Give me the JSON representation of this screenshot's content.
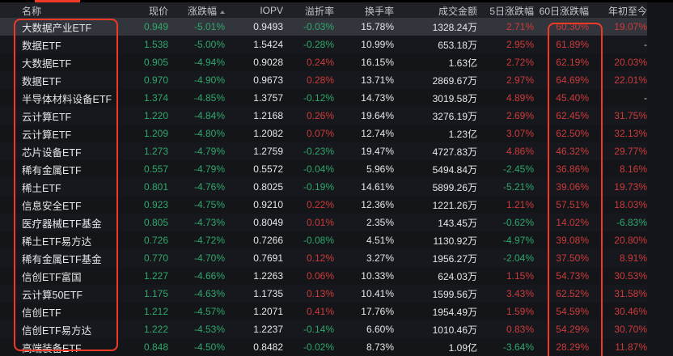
{
  "annotations": {
    "name_column_box_color": "#f13a26",
    "d60_column_box_color": "#f13a26",
    "top_mark_color": "#f13a26"
  },
  "colors": {
    "up_red": "#cd3b3b",
    "down_green": "#2fa86b",
    "neutral_white": "#e5e7ea",
    "header_bg": "#1f2127",
    "row_bg": "#141519",
    "highlight_row_bg": "#32353c"
  },
  "table": {
    "columns": [
      {
        "key": "name",
        "label": "名称",
        "align": "left",
        "color_rule": "white"
      },
      {
        "key": "price",
        "label": "现价",
        "align": "right",
        "color_rule": "follow-change"
      },
      {
        "key": "change",
        "label": "涨跌幅",
        "align": "right",
        "color_rule": "sign",
        "sorted": "asc"
      },
      {
        "key": "iopv",
        "label": "IOPV",
        "align": "right",
        "color_rule": "white"
      },
      {
        "key": "premium",
        "label": "溢折率",
        "align": "right",
        "color_rule": "sign"
      },
      {
        "key": "turnover",
        "label": "换手率",
        "align": "right",
        "color_rule": "white"
      },
      {
        "key": "amount",
        "label": "成交金额",
        "align": "right",
        "color_rule": "white"
      },
      {
        "key": "d5",
        "label": "5日涨跌幅",
        "align": "right",
        "color_rule": "sign"
      },
      {
        "key": "d60",
        "label": "60日涨跌幅",
        "align": "right",
        "color_rule": "sign"
      },
      {
        "key": "ytd",
        "label": "年初至今",
        "align": "right",
        "color_rule": "sign"
      }
    ],
    "highlighted_row_index": 0,
    "rows": [
      {
        "name": "大数据产业ETF",
        "price": "0.949",
        "change": "-5.01%",
        "iopv": "0.9493",
        "premium": "-0.03%",
        "turnover": "15.78%",
        "amount": "1328.24万",
        "d5": "2.71%",
        "d60": "60.30%",
        "ytd": "19.07%"
      },
      {
        "name": "数据ETF",
        "price": "1.538",
        "change": "-5.00%",
        "iopv": "1.5424",
        "premium": "-0.28%",
        "turnover": "10.99%",
        "amount": "653.18万",
        "d5": "2.95%",
        "d60": "61.89%",
        "ytd": "-"
      },
      {
        "name": "大数据ETF",
        "price": "0.905",
        "change": "-4.94%",
        "iopv": "0.9028",
        "premium": "0.24%",
        "turnover": "16.15%",
        "amount": "1.63亿",
        "d5": "2.72%",
        "d60": "62.19%",
        "ytd": "20.03%"
      },
      {
        "name": "数据ETF",
        "price": "0.970",
        "change": "-4.90%",
        "iopv": "0.9673",
        "premium": "0.28%",
        "turnover": "13.71%",
        "amount": "2869.67万",
        "d5": "2.97%",
        "d60": "64.69%",
        "ytd": "22.01%"
      },
      {
        "name": "半导体材料设备ETF",
        "price": "1.374",
        "change": "-4.85%",
        "iopv": "1.3757",
        "premium": "-0.12%",
        "turnover": "14.73%",
        "amount": "3019.58万",
        "d5": "4.89%",
        "d60": "45.40%",
        "ytd": "-"
      },
      {
        "name": "云计算ETF",
        "price": "1.220",
        "change": "-4.84%",
        "iopv": "1.2168",
        "premium": "0.26%",
        "turnover": "19.64%",
        "amount": "3276.19万",
        "d5": "2.69%",
        "d60": "62.45%",
        "ytd": "31.75%"
      },
      {
        "name": "云计算ETF",
        "price": "1.209",
        "change": "-4.80%",
        "iopv": "1.2082",
        "premium": "0.07%",
        "turnover": "12.74%",
        "amount": "1.23亿",
        "d5": "3.07%",
        "d60": "62.50%",
        "ytd": "32.13%"
      },
      {
        "name": "芯片设备ETF",
        "price": "1.273",
        "change": "-4.79%",
        "iopv": "1.2759",
        "premium": "-0.23%",
        "turnover": "19.47%",
        "amount": "4727.83万",
        "d5": "4.86%",
        "d60": "46.32%",
        "ytd": "29.77%"
      },
      {
        "name": "稀有金属ETF",
        "price": "0.557",
        "change": "-4.79%",
        "iopv": "0.5572",
        "premium": "-0.04%",
        "turnover": "5.96%",
        "amount": "5494.84万",
        "d5": "-2.45%",
        "d60": "36.86%",
        "ytd": "8.16%"
      },
      {
        "name": "稀土ETF",
        "price": "0.801",
        "change": "-4.76%",
        "iopv": "0.8025",
        "premium": "-0.19%",
        "turnover": "14.61%",
        "amount": "5899.26万",
        "d5": "-5.21%",
        "d60": "39.06%",
        "ytd": "19.73%"
      },
      {
        "name": "信息安全ETF",
        "price": "0.923",
        "change": "-4.75%",
        "iopv": "0.9210",
        "premium": "0.22%",
        "turnover": "12.36%",
        "amount": "1221.26万",
        "d5": "1.21%",
        "d60": "57.51%",
        "ytd": "18.03%"
      },
      {
        "name": "医疗器械ETF基金",
        "price": "0.805",
        "change": "-4.73%",
        "iopv": "0.8049",
        "premium": "0.01%",
        "turnover": "2.35%",
        "amount": "143.45万",
        "d5": "-0.62%",
        "d60": "14.02%",
        "ytd": "-6.83%"
      },
      {
        "name": "稀土ETF易方达",
        "price": "0.726",
        "change": "-4.72%",
        "iopv": "0.7266",
        "premium": "-0.08%",
        "turnover": "4.51%",
        "amount": "1130.92万",
        "d5": "-4.97%",
        "d60": "39.08%",
        "ytd": "20.80%"
      },
      {
        "name": "稀有金属ETF基金",
        "price": "0.770",
        "change": "-4.70%",
        "iopv": "0.7691",
        "premium": "0.12%",
        "turnover": "3.27%",
        "amount": "1956.27万",
        "d5": "-2.04%",
        "d60": "37.50%",
        "ytd": "8.91%"
      },
      {
        "name": "信创ETF富国",
        "price": "1.227",
        "change": "-4.66%",
        "iopv": "1.2263",
        "premium": "0.06%",
        "turnover": "10.33%",
        "amount": "624.03万",
        "d5": "1.15%",
        "d60": "54.73%",
        "ytd": "30.53%"
      },
      {
        "name": "云计算50ETF",
        "price": "1.175",
        "change": "-4.63%",
        "iopv": "1.1735",
        "premium": "0.13%",
        "turnover": "10.41%",
        "amount": "1599.56万",
        "d5": "3.43%",
        "d60": "62.52%",
        "ytd": "31.58%"
      },
      {
        "name": "信创ETF",
        "price": "1.212",
        "change": "-4.57%",
        "iopv": "1.2071",
        "premium": "0.41%",
        "turnover": "17.76%",
        "amount": "1954.49万",
        "d5": "1.59%",
        "d60": "54.59%",
        "ytd": "30.46%"
      },
      {
        "name": "信创ETF易方达",
        "price": "1.222",
        "change": "-4.53%",
        "iopv": "1.2237",
        "premium": "-0.14%",
        "turnover": "6.60%",
        "amount": "1010.46万",
        "d5": "0.83%",
        "d60": "54.29%",
        "ytd": "30.70%"
      },
      {
        "name": "高端装备ETF",
        "price": "0.848",
        "change": "-4.50%",
        "iopv": "0.8482",
        "premium": "-0.02%",
        "turnover": "8.73%",
        "amount": "1.09亿",
        "d5": "-3.64%",
        "d60": "28.29%",
        "ytd": "11.87%"
      }
    ]
  }
}
